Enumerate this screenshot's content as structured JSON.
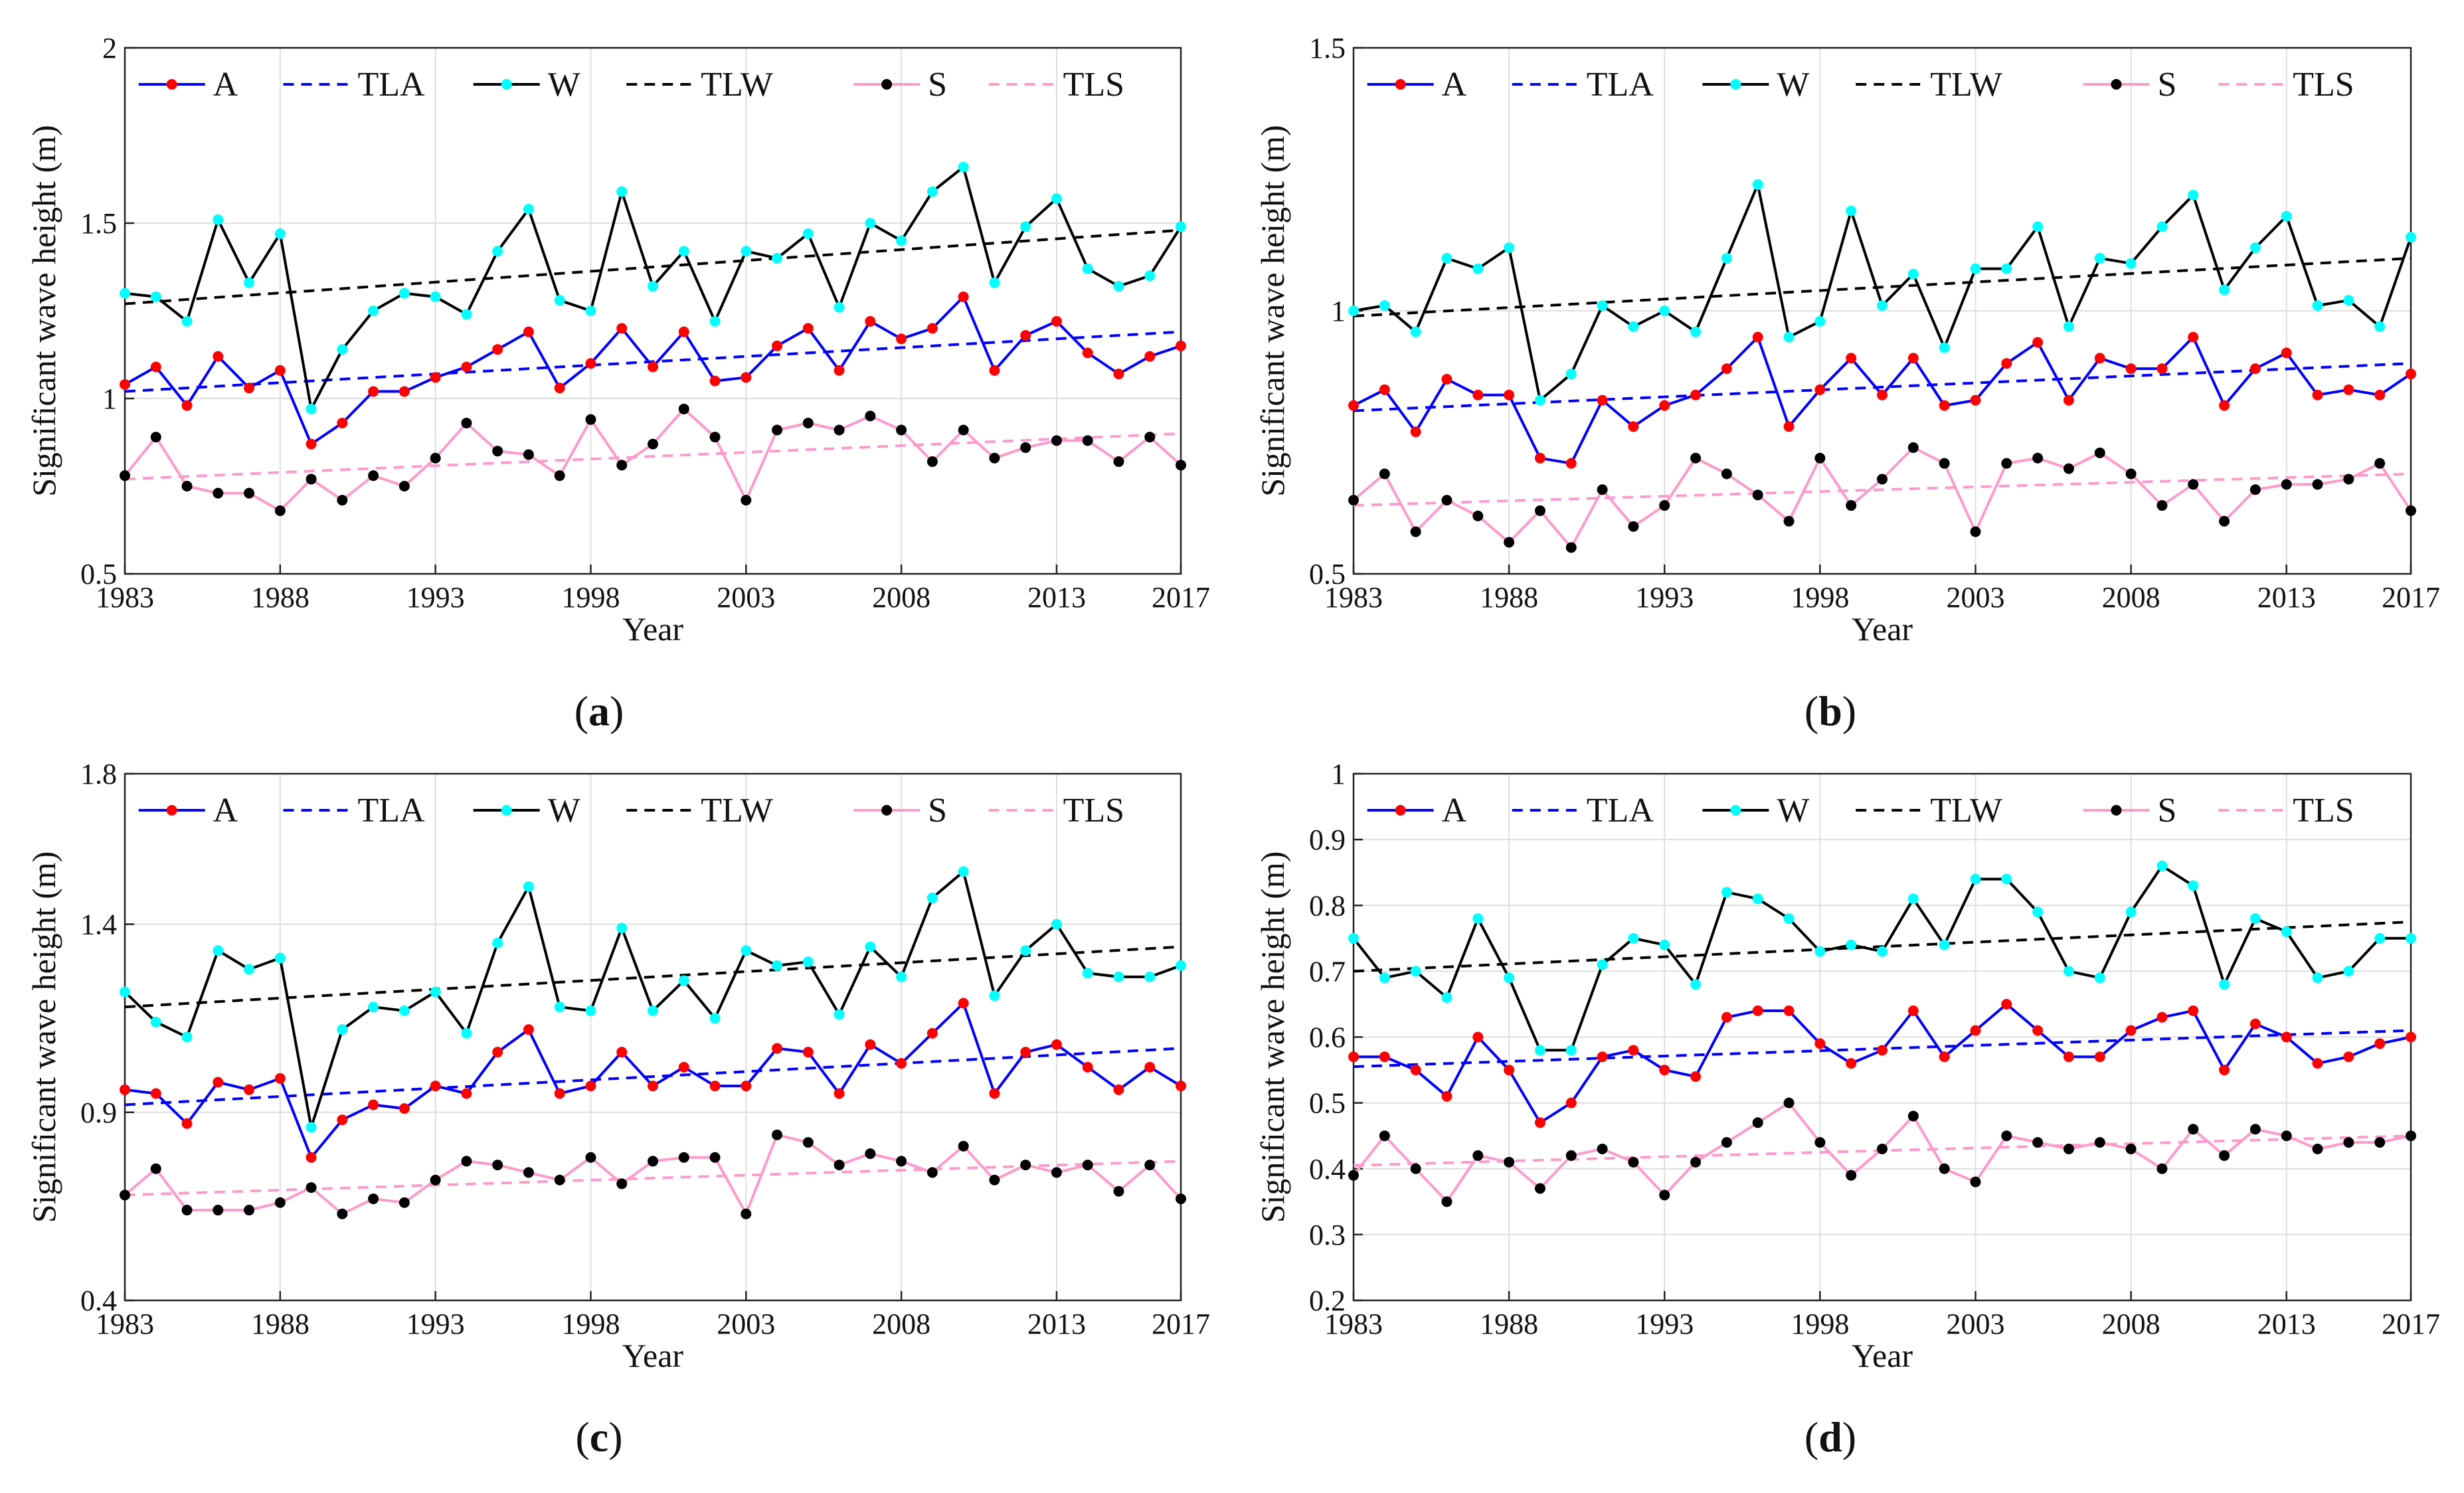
{
  "colors": {
    "A_line": "#0000ff",
    "A_marker": "#ff0000",
    "TLA": "#0000ff",
    "W_line": "#000000",
    "W_marker": "#00ffff",
    "TLW": "#000000",
    "S_line": "#ff99cc",
    "S_marker": "#000000",
    "TLS": "#ff99cc"
  },
  "legend_labels": [
    "A",
    "TLA",
    "W",
    "TLW",
    "S",
    "TLS"
  ],
  "chart_data": [
    {
      "type": "line",
      "panel_label": "(a)",
      "panel_letter": "a",
      "xlabel": "Year",
      "ylabel": "Significant wave height  (m)",
      "xlim": [
        1983,
        2017
      ],
      "ylim": [
        0.5,
        2
      ],
      "xticks": [
        1983,
        1988,
        1993,
        1998,
        2003,
        2008,
        2013,
        2017
      ],
      "yticks": [
        0.5,
        1,
        1.5,
        2
      ],
      "ytick_labels": [
        "0.5",
        "1",
        "1.5",
        "2"
      ],
      "grid": true,
      "legend_position": "top",
      "series": [
        {
          "name": "A",
          "values": [
            1.04,
            1.09,
            0.98,
            1.12,
            1.03,
            1.08,
            0.87,
            0.93,
            1.02,
            1.02,
            1.06,
            1.09,
            1.14,
            1.19,
            1.03,
            1.1,
            1.2,
            1.09,
            1.19,
            1.05,
            1.06,
            1.15,
            1.2,
            1.08,
            1.22,
            1.17,
            1.2,
            1.29,
            1.08,
            1.18,
            1.22,
            1.13,
            1.07,
            1.12,
            1.15
          ]
        },
        {
          "name": "W",
          "values": [
            1.3,
            1.29,
            1.22,
            1.51,
            1.33,
            1.47,
            0.97,
            1.14,
            1.25,
            1.3,
            1.29,
            1.24,
            1.42,
            1.54,
            1.28,
            1.25,
            1.59,
            1.32,
            1.42,
            1.22,
            1.42,
            1.4,
            1.47,
            1.26,
            1.5,
            1.45,
            1.59,
            1.66,
            1.33,
            1.49,
            1.57,
            1.37,
            1.32,
            1.35,
            1.49
          ]
        },
        {
          "name": "S",
          "values": [
            0.78,
            0.89,
            0.75,
            0.73,
            0.73,
            0.68,
            0.77,
            0.71,
            0.78,
            0.75,
            0.83,
            0.93,
            0.85,
            0.84,
            0.78,
            0.94,
            0.81,
            0.87,
            0.97,
            0.89,
            0.71,
            0.91,
            0.93,
            0.91,
            0.95,
            0.91,
            0.82,
            0.91,
            0.83,
            0.86,
            0.88,
            0.88,
            0.82,
            0.89,
            0.81
          ]
        }
      ],
      "trends": [
        {
          "name": "TLA",
          "start": 1.02,
          "end": 1.19
        },
        {
          "name": "TLW",
          "start": 1.27,
          "end": 1.48
        },
        {
          "name": "TLS",
          "start": 0.77,
          "end": 0.9
        }
      ]
    },
    {
      "type": "line",
      "panel_label": "(b)",
      "panel_letter": "b",
      "xlabel": "Year",
      "ylabel": "Significant wave height  (m)",
      "xlim": [
        1983,
        2017
      ],
      "ylim": [
        0.5,
        1.5
      ],
      "xticks": [
        1983,
        1988,
        1993,
        1998,
        2003,
        2008,
        2013,
        2017
      ],
      "yticks": [
        0.5,
        1,
        1.5
      ],
      "ytick_labels": [
        "0.5",
        "1",
        "1.5"
      ],
      "grid": true,
      "legend_position": "top",
      "series": [
        {
          "name": "A",
          "values": [
            0.82,
            0.85,
            0.77,
            0.87,
            0.84,
            0.84,
            0.72,
            0.71,
            0.83,
            0.78,
            0.82,
            0.84,
            0.89,
            0.95,
            0.78,
            0.85,
            0.91,
            0.84,
            0.91,
            0.82,
            0.83,
            0.9,
            0.94,
            0.83,
            0.91,
            0.89,
            0.89,
            0.95,
            0.82,
            0.89,
            0.92,
            0.84,
            0.85,
            0.84,
            0.88
          ]
        },
        {
          "name": "W",
          "values": [
            1.0,
            1.01,
            0.96,
            1.1,
            1.08,
            1.12,
            0.83,
            0.88,
            1.01,
            0.97,
            1.0,
            0.96,
            1.1,
            1.24,
            0.95,
            0.98,
            1.19,
            1.01,
            1.07,
            0.93,
            1.08,
            1.08,
            1.16,
            0.97,
            1.1,
            1.09,
            1.16,
            1.22,
            1.04,
            1.12,
            1.18,
            1.01,
            1.02,
            0.97,
            1.14
          ]
        },
        {
          "name": "S",
          "values": [
            0.64,
            0.69,
            0.58,
            0.64,
            0.61,
            0.56,
            0.62,
            0.55,
            0.66,
            0.59,
            0.63,
            0.72,
            0.69,
            0.65,
            0.6,
            0.72,
            0.63,
            0.68,
            0.74,
            0.71,
            0.58,
            0.71,
            0.72,
            0.7,
            0.73,
            0.69,
            0.63,
            0.67,
            0.6,
            0.66,
            0.67,
            0.67,
            0.68,
            0.71,
            0.62
          ]
        }
      ],
      "trends": [
        {
          "name": "TLA",
          "start": 0.81,
          "end": 0.9
        },
        {
          "name": "TLW",
          "start": 0.99,
          "end": 1.1
        },
        {
          "name": "TLS",
          "start": 0.63,
          "end": 0.69
        }
      ]
    },
    {
      "type": "line",
      "panel_label": "(c)",
      "panel_letter": "c",
      "xlabel": "Year",
      "ylabel": "Significant wave height  (m)",
      "xlim": [
        1983,
        2017
      ],
      "ylim": [
        0.4,
        1.8
      ],
      "xticks": [
        1983,
        1988,
        1993,
        1998,
        2003,
        2008,
        2013,
        2017
      ],
      "yticks": [
        0.4,
        0.9,
        1.4,
        1.8
      ],
      "ytick_labels": [
        "0.4",
        "0.9",
        "1.4",
        "1.8"
      ],
      "grid": true,
      "legend_position": "top",
      "series": [
        {
          "name": "A",
          "values": [
            0.96,
            0.95,
            0.87,
            0.98,
            0.96,
            0.99,
            0.78,
            0.88,
            0.92,
            0.91,
            0.97,
            0.95,
            1.06,
            1.12,
            0.95,
            0.97,
            1.06,
            0.97,
            1.02,
            0.97,
            0.97,
            1.07,
            1.06,
            0.95,
            1.08,
            1.03,
            1.11,
            1.19,
            0.95,
            1.06,
            1.08,
            1.02,
            0.96,
            1.02,
            0.97
          ]
        },
        {
          "name": "W",
          "values": [
            1.22,
            1.14,
            1.1,
            1.33,
            1.28,
            1.31,
            0.86,
            1.12,
            1.18,
            1.17,
            1.22,
            1.11,
            1.35,
            1.5,
            1.18,
            1.17,
            1.39,
            1.17,
            1.25,
            1.15,
            1.33,
            1.29,
            1.3,
            1.16,
            1.34,
            1.26,
            1.47,
            1.54,
            1.21,
            1.33,
            1.4,
            1.27,
            1.26,
            1.26,
            1.29
          ]
        },
        {
          "name": "S",
          "values": [
            0.68,
            0.75,
            0.64,
            0.64,
            0.64,
            0.66,
            0.7,
            0.63,
            0.67,
            0.66,
            0.72,
            0.77,
            0.76,
            0.74,
            0.72,
            0.78,
            0.71,
            0.77,
            0.78,
            0.78,
            0.63,
            0.84,
            0.82,
            0.76,
            0.79,
            0.77,
            0.74,
            0.81,
            0.72,
            0.76,
            0.74,
            0.76,
            0.69,
            0.76,
            0.67
          ]
        }
      ],
      "trends": [
        {
          "name": "TLA",
          "start": 0.92,
          "end": 1.07
        },
        {
          "name": "TLW",
          "start": 1.18,
          "end": 1.34
        },
        {
          "name": "TLS",
          "start": 0.68,
          "end": 0.77
        }
      ]
    },
    {
      "type": "line",
      "panel_label": "(d)",
      "panel_letter": "d",
      "xlabel": "Year",
      "ylabel": "Significant wave height  (m)",
      "xlim": [
        1983,
        2017
      ],
      "ylim": [
        0.2,
        1
      ],
      "xticks": [
        1983,
        1988,
        1993,
        1998,
        2003,
        2008,
        2013,
        2017
      ],
      "yticks": [
        0.2,
        0.3,
        0.4,
        0.5,
        0.6,
        0.7,
        0.8,
        0.9,
        1
      ],
      "ytick_labels": [
        "0.2",
        "0.3",
        "0.4",
        "0.5",
        "0.6",
        "0.7",
        "0.8",
        "0.9",
        "1"
      ],
      "grid": true,
      "legend_position": "top",
      "series": [
        {
          "name": "A",
          "values": [
            0.57,
            0.57,
            0.55,
            0.51,
            0.6,
            0.55,
            0.47,
            0.5,
            0.57,
            0.58,
            0.55,
            0.54,
            0.63,
            0.64,
            0.64,
            0.59,
            0.56,
            0.58,
            0.64,
            0.57,
            0.61,
            0.65,
            0.61,
            0.57,
            0.57,
            0.61,
            0.63,
            0.64,
            0.55,
            0.62,
            0.6,
            0.56,
            0.57,
            0.59,
            0.6
          ]
        },
        {
          "name": "W",
          "values": [
            0.75,
            0.69,
            0.7,
            0.66,
            0.78,
            0.69,
            0.58,
            0.58,
            0.71,
            0.75,
            0.74,
            0.68,
            0.82,
            0.81,
            0.78,
            0.73,
            0.74,
            0.73,
            0.81,
            0.74,
            0.84,
            0.84,
            0.79,
            0.7,
            0.69,
            0.79,
            0.86,
            0.83,
            0.68,
            0.78,
            0.76,
            0.69,
            0.7,
            0.75,
            0.75
          ]
        },
        {
          "name": "S",
          "values": [
            0.39,
            0.45,
            0.4,
            0.35,
            0.42,
            0.41,
            0.37,
            0.42,
            0.43,
            0.41,
            0.36,
            0.41,
            0.44,
            0.47,
            0.5,
            0.44,
            0.39,
            0.43,
            0.48,
            0.4,
            0.38,
            0.45,
            0.44,
            0.43,
            0.44,
            0.43,
            0.4,
            0.46,
            0.42,
            0.46,
            0.45,
            0.43,
            0.44,
            0.44,
            0.45
          ]
        }
      ],
      "trends": [
        {
          "name": "TLA",
          "start": 0.555,
          "end": 0.61
        },
        {
          "name": "TLW",
          "start": 0.7,
          "end": 0.775
        },
        {
          "name": "TLS",
          "start": 0.405,
          "end": 0.45
        }
      ]
    }
  ]
}
